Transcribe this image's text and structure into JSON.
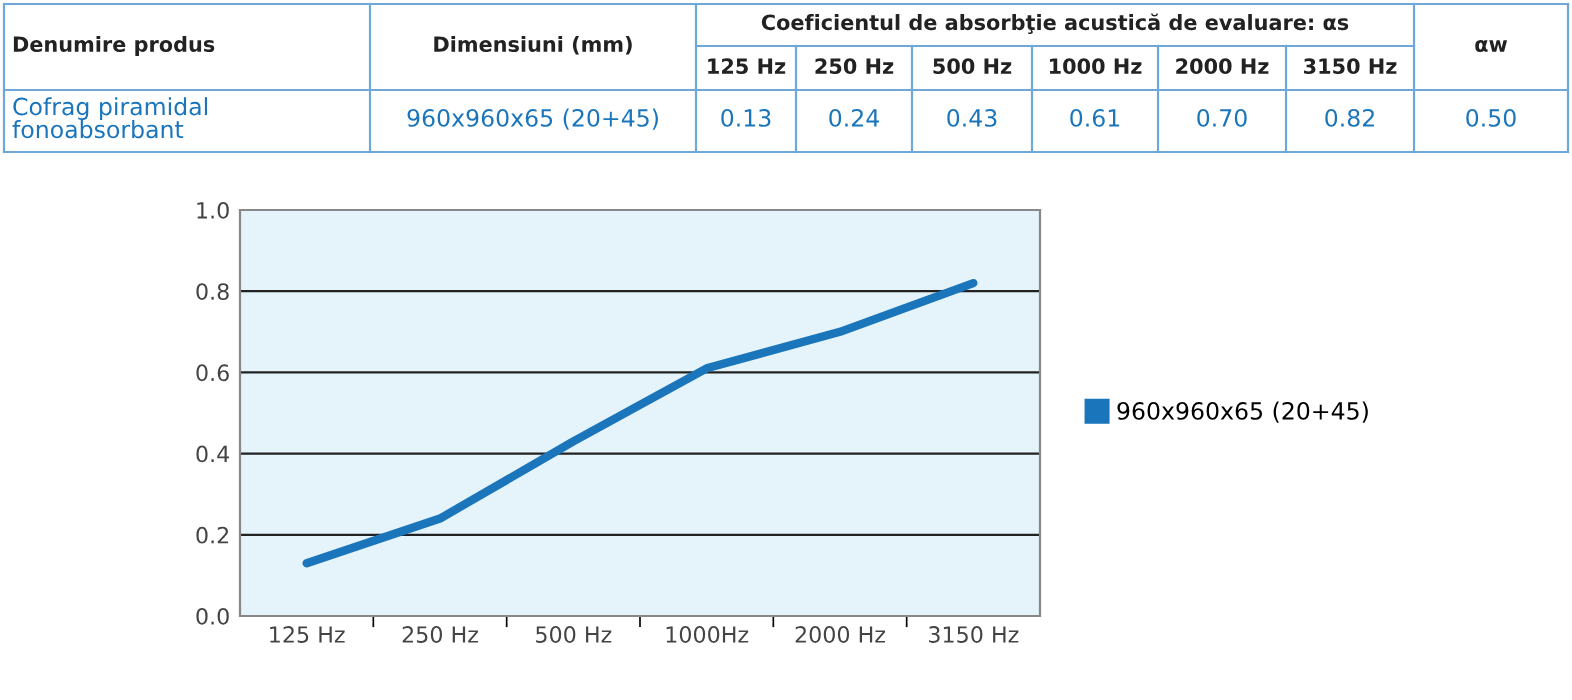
{
  "chart_data": {
    "type": "line",
    "categories": [
      "125 Hz",
      "250 Hz",
      "500 Hz",
      "1000Hz",
      "2000 Hz",
      "3150 Hz"
    ],
    "series": [
      {
        "name": "960x960x65 (20+45)",
        "color": "#1a75bb",
        "values": [
          0.13,
          0.24,
          0.43,
          0.61,
          0.7,
          0.82
        ]
      }
    ],
    "ylim": [
      0,
      1
    ],
    "yticks": [
      {
        "value": 0,
        "label": "0.0"
      },
      {
        "value": 0.2,
        "label": "0.2"
      },
      {
        "value": 0.4,
        "label": "0.4"
      },
      {
        "value": 0.6,
        "label": "0.6"
      },
      {
        "value": 0.8,
        "label": "0.8"
      },
      {
        "value": 1,
        "label": "1.0"
      }
    ],
    "grid": "y",
    "legend": "right",
    "marker": "none",
    "line_style": "solid",
    "annotations": [
      "Denumire produs",
      "Dimensiuni (mm)",
      "Coeficientul de absorbţie acustică de evaluare: αs",
      "125 Hz",
      "250 Hz",
      "500 Hz",
      "1000 Hz",
      "2000 Hz",
      "3150 Hz",
      "αw",
      "Cofrag piramidal\nfonoabsorbant",
      "960x960x65 (20+45)",
      "0.50",
      "0.13",
      "0.24",
      "0.43",
      "0.61",
      "0.70",
      "0.82"
    ]
  }
}
